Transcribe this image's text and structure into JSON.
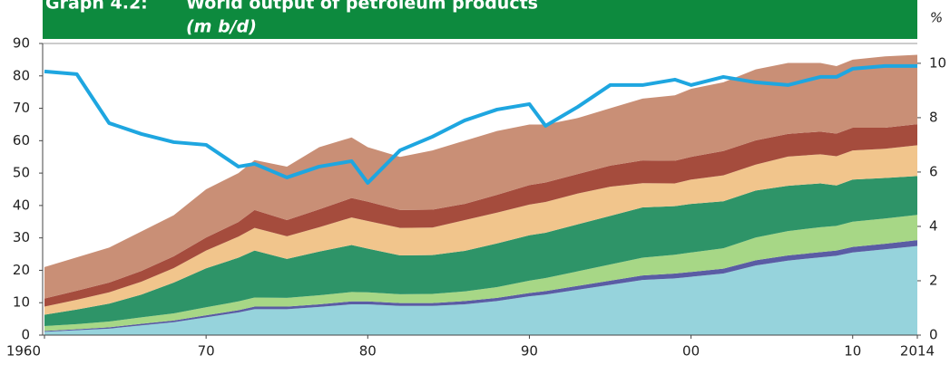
{
  "chart_data": {
    "type": "stacked_area",
    "label": "Graph 4.2:",
    "title": "World output of petroleum products",
    "subtitle": "(m b/d)",
    "y2_label": "%",
    "x": [
      1960,
      1962,
      1964,
      1966,
      1968,
      1970,
      1972,
      1973,
      1975,
      1977,
      1979,
      1980,
      1982,
      1984,
      1986,
      1988,
      1990,
      1991,
      1993,
      1995,
      1997,
      1999,
      2000,
      2002,
      2004,
      2006,
      2008,
      2009,
      2010,
      2012,
      2014
    ],
    "xlim": [
      1960,
      2014
    ],
    "xticks": [
      1960,
      {
        "value": 1970,
        "label": "70"
      },
      {
        "value": 1980,
        "label": "80"
      },
      {
        "value": 1990,
        "label": "90"
      },
      {
        "value": 2000,
        "label": "00"
      },
      {
        "value": 2010,
        "label": "10"
      },
      2014
    ],
    "ylim": [
      0,
      90
    ],
    "yticks": [
      0,
      10,
      20,
      30,
      40,
      50,
      60,
      70,
      80,
      90
    ],
    "y2lim": [
      0,
      10.73
    ],
    "y2ticks": [
      0,
      2,
      4,
      6,
      8,
      10
    ],
    "series": [
      {
        "color": "#96d3dc",
        "values": [
          1,
          1.5,
          2,
          3,
          4,
          5.5,
          7,
          8,
          8,
          8.7,
          9.5,
          9.5,
          9,
          9,
          9.5,
          10.5,
          12,
          12.5,
          14,
          15.5,
          17,
          17.5,
          18,
          19,
          21.5,
          23,
          24,
          24.5,
          25.5,
          26.5,
          27.5
        ]
      },
      {
        "color": "#5a5ca4",
        "values": [
          0.3,
          0.3,
          0.4,
          0.5,
          0.5,
          0.6,
          0.7,
          0.8,
          0.8,
          0.8,
          0.9,
          0.9,
          0.9,
          0.9,
          1,
          1,
          1,
          1.1,
          1.2,
          1.3,
          1.4,
          1.5,
          1.5,
          1.5,
          1.6,
          1.6,
          1.6,
          1.6,
          1.7,
          1.7,
          1.8
        ]
      },
      {
        "color": "#a7d786",
        "values": [
          1.5,
          1.6,
          1.8,
          2,
          2.2,
          2.5,
          2.7,
          2.8,
          2.7,
          2.8,
          2.9,
          2.8,
          2.7,
          2.8,
          3,
          3.3,
          3.8,
          4,
          4.5,
          5,
          5.5,
          5.8,
          6,
          6.3,
          7,
          7.5,
          7.7,
          7.6,
          7.8,
          7.8,
          7.8
        ]
      },
      {
        "color": "#2e9468",
        "values": [
          3.5,
          4.5,
          5.5,
          7,
          9.5,
          12,
          13.5,
          14.5,
          12,
          13.5,
          14.5,
          13.5,
          12,
          12,
          12.5,
          13.5,
          14,
          14,
          14.5,
          15,
          15.5,
          15,
          15,
          14.5,
          14.5,
          14,
          13.5,
          12.5,
          13,
          12.5,
          12
        ]
      },
      {
        "color": "#f1c58c",
        "values": [
          2.5,
          3,
          3.5,
          4,
          4.5,
          5.5,
          6.5,
          7,
          7,
          7.5,
          8.5,
          8.5,
          8.5,
          8.5,
          9.5,
          9.5,
          9.5,
          9.5,
          9.5,
          9,
          7.5,
          7,
          7.5,
          8,
          8,
          9,
          9,
          9,
          9,
          9,
          9.5
        ]
      },
      {
        "color": "#a54c3d",
        "values": [
          2.5,
          2.8,
          3,
          3.3,
          3.6,
          4,
          4.5,
          5.5,
          5,
          5.5,
          6,
          6,
          5.5,
          5.5,
          5,
          5.5,
          6,
          6,
          6,
          6.5,
          7,
          7,
          7,
          7.5,
          7.5,
          7,
          7,
          7,
          7,
          6.5,
          6.5
        ]
      },
      {
        "color": "#c98f76",
        "values": [
          9.7,
          10.3,
          10.8,
          12.2,
          12.7,
          14.9,
          15.1,
          15.4,
          16.5,
          19.2,
          18.7,
          16.8,
          16.4,
          18.3,
          19.5,
          19.7,
          18.7,
          17.9,
          17.3,
          17.7,
          19.1,
          20.2,
          21,
          21.2,
          21.9,
          21.9,
          21.2,
          20.8,
          21,
          22,
          21.4
        ]
      },
      {
        "color": "#1ea6e0",
        "type": "line",
        "axis": "y2",
        "values": [
          9.7,
          9.6,
          7.8,
          7.4,
          7.1,
          7.0,
          6.2,
          6.3,
          5.8,
          6.2,
          6.4,
          5.6,
          6.8,
          7.3,
          7.9,
          8.3,
          8.5,
          7.7,
          8.4,
          9.2,
          9.2,
          9.4,
          9.2,
          9.5,
          9.3,
          9.2,
          9.5,
          9.5,
          9.8,
          9.9,
          9.9
        ]
      }
    ]
  }
}
